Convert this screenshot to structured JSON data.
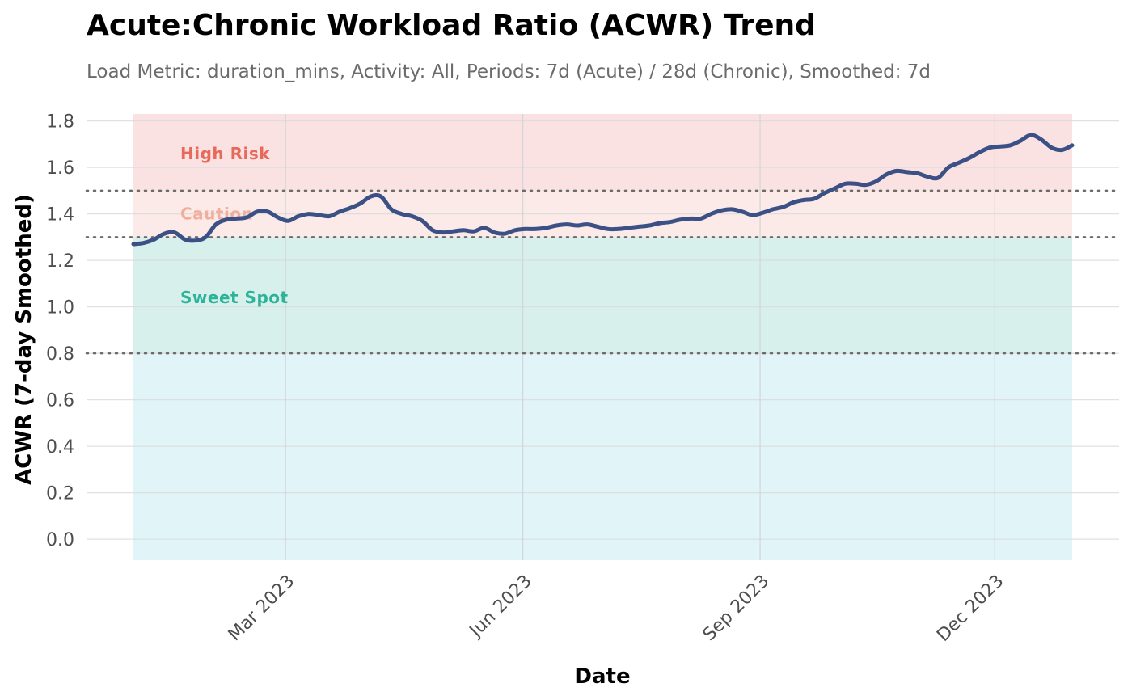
{
  "chart_data": {
    "type": "line",
    "title": "Acute:Chronic Workload Ratio (ACWR) Trend",
    "subtitle": "Load Metric: duration_mins, Activity: All, Periods: 7d (Acute) / 28d (Chronic), Smoothed: 7d",
    "xlabel": "Date",
    "ylabel": "ACWR (7-day Smoothed)",
    "x_range": [
      "2023-01-01",
      "2023-12-31"
    ],
    "ylim": [
      -0.09,
      1.83
    ],
    "y_ticks": [
      0.0,
      0.2,
      0.4,
      0.6,
      0.8,
      1.0,
      1.2,
      1.4,
      1.6,
      1.8
    ],
    "y_tick_labels": [
      "0.0",
      "0.2",
      "0.4",
      "0.6",
      "0.8",
      "1.0",
      "1.2",
      "1.4",
      "1.6",
      "1.8"
    ],
    "x_ticks": [
      {
        "date": "2023-03-01",
        "label": "Mar 2023"
      },
      {
        "date": "2023-06-01",
        "label": "Jun 2023"
      },
      {
        "date": "2023-09-01",
        "label": "Sep 2023"
      },
      {
        "date": "2023-12-01",
        "label": "Dec 2023"
      }
    ],
    "grid": true,
    "legend": "none",
    "thresholds": [
      0.8,
      1.3,
      1.5
    ],
    "zones": [
      {
        "from": -0.09,
        "to": 0.8,
        "color": "#e1f4f8",
        "label": ""
      },
      {
        "from": 0.8,
        "to": 1.3,
        "color": "#d7f0eb",
        "label": "Sweet Spot",
        "label_color": "#2cb39a",
        "label_y": 1.04
      },
      {
        "from": 1.3,
        "to": 1.5,
        "color": "#fbeae7",
        "label": "Caution",
        "label_color": "#f2ae9c",
        "label_y": 1.4
      },
      {
        "from": 1.5,
        "to": 1.83,
        "color": "#fbe2e2",
        "label": "High Risk",
        "label_color": "#e8685a",
        "label_y": 1.66
      }
    ],
    "line_color": "#3b5186",
    "series": [
      {
        "x": [
          "2023-01-01",
          "2023-01-05",
          "2023-01-09",
          "2023-01-13",
          "2023-01-17",
          "2023-01-21",
          "2023-01-25",
          "2023-01-29",
          "2023-02-02",
          "2023-02-06",
          "2023-02-10",
          "2023-02-14",
          "2023-02-18",
          "2023-02-22",
          "2023-02-26",
          "2023-03-02",
          "2023-03-06",
          "2023-03-10",
          "2023-03-14",
          "2023-03-18",
          "2023-03-22",
          "2023-03-26",
          "2023-03-30",
          "2023-04-03",
          "2023-04-07",
          "2023-04-11",
          "2023-04-15",
          "2023-04-19",
          "2023-04-23",
          "2023-04-27",
          "2023-05-01",
          "2023-05-05",
          "2023-05-09",
          "2023-05-13",
          "2023-05-17",
          "2023-05-21",
          "2023-05-25",
          "2023-05-29",
          "2023-06-02",
          "2023-06-06",
          "2023-06-10",
          "2023-06-14",
          "2023-06-18",
          "2023-06-22",
          "2023-06-26",
          "2023-06-30",
          "2023-07-04",
          "2023-07-08",
          "2023-07-12",
          "2023-07-16",
          "2023-07-20",
          "2023-07-24",
          "2023-07-28",
          "2023-08-01",
          "2023-08-05",
          "2023-08-09",
          "2023-08-13",
          "2023-08-17",
          "2023-08-21",
          "2023-08-25",
          "2023-08-29",
          "2023-09-02",
          "2023-09-06",
          "2023-09-10",
          "2023-09-14",
          "2023-09-18",
          "2023-09-22",
          "2023-09-26",
          "2023-09-30",
          "2023-10-04",
          "2023-10-08",
          "2023-10-12",
          "2023-10-16",
          "2023-10-20",
          "2023-10-24",
          "2023-10-28",
          "2023-11-01",
          "2023-11-05",
          "2023-11-09",
          "2023-11-13",
          "2023-11-17",
          "2023-11-21",
          "2023-11-25",
          "2023-11-29",
          "2023-12-03",
          "2023-12-07",
          "2023-12-11",
          "2023-12-15",
          "2023-12-19",
          "2023-12-23",
          "2023-12-27",
          "2023-12-31"
        ],
        "y": [
          1.27,
          1.275,
          1.29,
          1.315,
          1.32,
          1.29,
          1.285,
          1.3,
          1.355,
          1.375,
          1.38,
          1.385,
          1.41,
          1.41,
          1.385,
          1.37,
          1.39,
          1.4,
          1.395,
          1.39,
          1.41,
          1.425,
          1.445,
          1.475,
          1.475,
          1.42,
          1.4,
          1.39,
          1.37,
          1.33,
          1.32,
          1.325,
          1.33,
          1.325,
          1.34,
          1.32,
          1.315,
          1.33,
          1.335,
          1.335,
          1.34,
          1.35,
          1.355,
          1.35,
          1.355,
          1.345,
          1.335,
          1.335,
          1.34,
          1.345,
          1.35,
          1.36,
          1.365,
          1.375,
          1.38,
          1.38,
          1.4,
          1.415,
          1.42,
          1.41,
          1.395,
          1.405,
          1.42,
          1.43,
          1.45,
          1.46,
          1.465,
          1.49,
          1.51,
          1.53,
          1.53,
          1.525,
          1.54,
          1.57,
          1.585,
          1.58,
          1.575,
          1.56,
          1.555,
          1.6,
          1.62,
          1.64,
          1.665,
          1.685,
          1.69,
          1.695,
          1.715,
          1.74,
          1.72,
          1.685,
          1.675,
          1.695
        ]
      }
    ]
  }
}
